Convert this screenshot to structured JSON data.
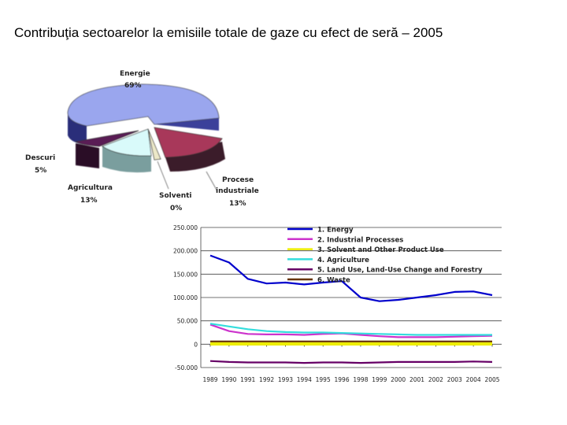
{
  "page": {
    "title": "Contribuţia sectoarelor la emisiile totale de gaze cu efect de seră – 2005"
  },
  "chart_data": [
    {
      "type": "pie",
      "slices": [
        {
          "label": "Energie",
          "pct_label": "69%",
          "value": 69,
          "color": "#9aa6ee"
        },
        {
          "label": "Procese industriale",
          "pct_label": "13%",
          "value": 13,
          "color": "#a8385a"
        },
        {
          "label": "Solventi",
          "pct_label": "0%",
          "value": 0.5,
          "color": "#ece8c8"
        },
        {
          "label": "Agricultura",
          "pct_label": "13%",
          "value": 13,
          "color": "#d9fafa"
        },
        {
          "label": "Descuri",
          "pct_label": "5%",
          "value": 5,
          "color": "#5a1a55"
        }
      ]
    },
    {
      "type": "line",
      "x": [
        "1989",
        "1990",
        "1991",
        "1992",
        "1993",
        "1994",
        "1995",
        "1996",
        "1998",
        "1999",
        "2000",
        "2001",
        "2002",
        "2003",
        "2004",
        "2005"
      ],
      "yticks": [
        "250.000",
        "200.000",
        "150.000",
        "100.000",
        "50.000",
        "0",
        "-50.000"
      ],
      "ylim": [
        -50000,
        250000
      ],
      "grid": true,
      "legend_position": "top-right",
      "series": [
        {
          "name": "1.  Energy",
          "color": "#0000cc",
          "values": [
            190000,
            175000,
            140000,
            130000,
            132000,
            128000,
            132000,
            135000,
            100000,
            92000,
            95000,
            100000,
            105000,
            112000,
            113000,
            105000
          ]
        },
        {
          "name": "2.  Industrial Processes",
          "color": "#cc33cc",
          "values": [
            42000,
            28000,
            22000,
            21000,
            21000,
            20000,
            22000,
            23000,
            20000,
            17000,
            15000,
            15000,
            15000,
            16000,
            17000,
            18000
          ]
        },
        {
          "name": "3.  Solvent and Other Product Use",
          "color": "#eeee00",
          "values": [
            500,
            500,
            500,
            500,
            500,
            500,
            500,
            500,
            500,
            500,
            500,
            500,
            500,
            500,
            500,
            500
          ]
        },
        {
          "name": "4.  Agriculture",
          "color": "#33dddd",
          "values": [
            44000,
            38000,
            32000,
            28000,
            26000,
            25000,
            25000,
            24000,
            23000,
            22000,
            21000,
            20000,
            20000,
            20000,
            20000,
            20000
          ]
        },
        {
          "name": "5.  Land Use, Land-Use Change and Forestry",
          "color": "#660066",
          "values": [
            -36000,
            -38000,
            -39000,
            -39000,
            -39000,
            -40000,
            -39000,
            -39000,
            -40000,
            -39000,
            -38000,
            -38000,
            -38000,
            -38000,
            -37000,
            -38000
          ]
        },
        {
          "name": "6.  Waste",
          "color": "#663300",
          "values": [
            6000,
            6000,
            6000,
            6000,
            6000,
            6000,
            6000,
            6000,
            6000,
            6000,
            6000,
            6000,
            6000,
            6000,
            6000,
            6000
          ]
        }
      ]
    }
  ]
}
